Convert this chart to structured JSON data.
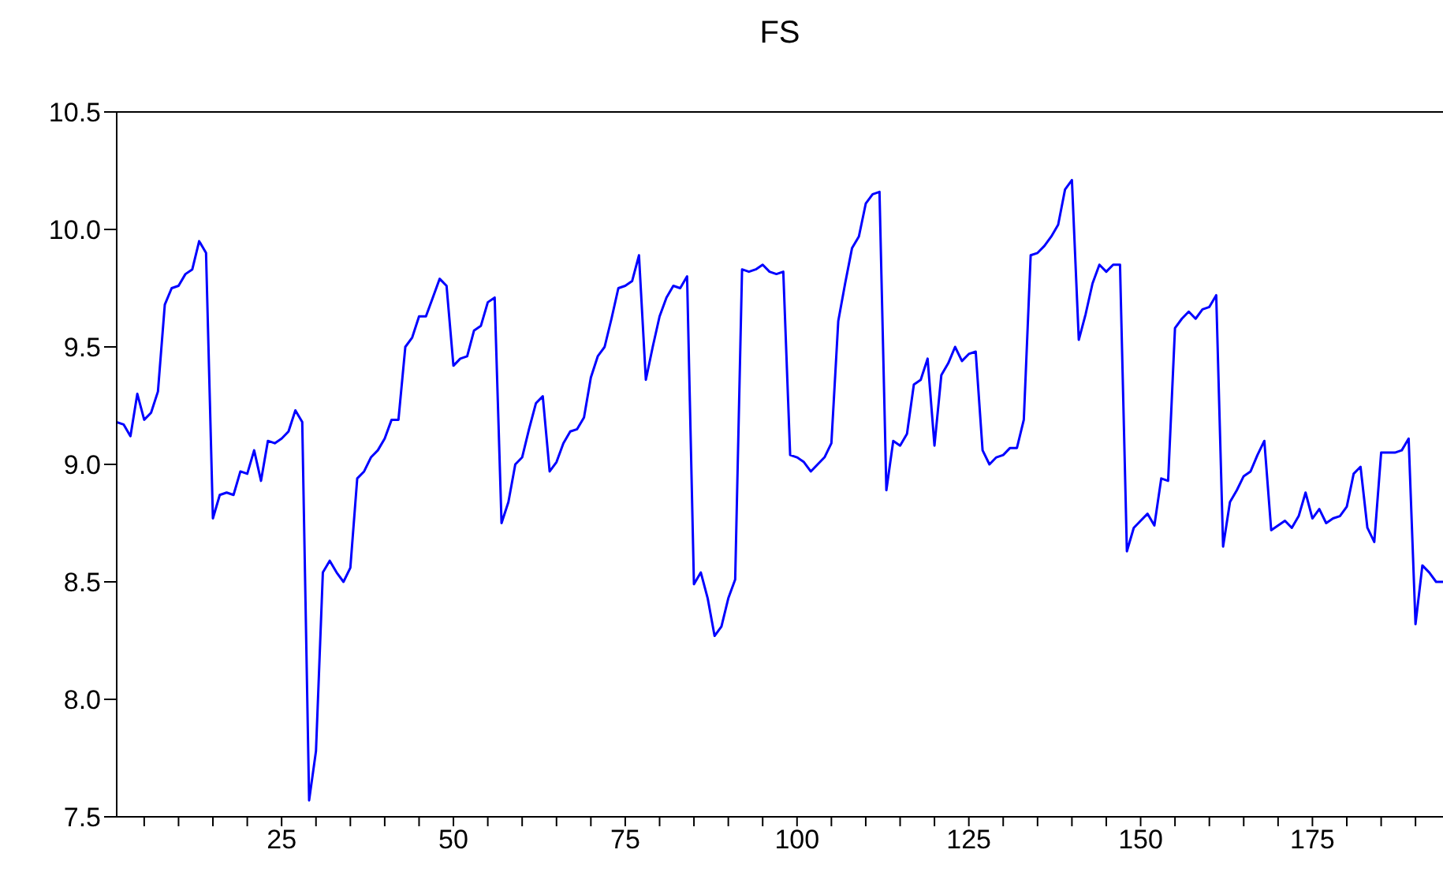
{
  "chart_data": {
    "type": "line",
    "title": "FS",
    "x": [
      1,
      2,
      3,
      4,
      5,
      6,
      7,
      8,
      9,
      10,
      11,
      12,
      13,
      14,
      15,
      16,
      17,
      18,
      19,
      20,
      21,
      22,
      23,
      24,
      25,
      26,
      27,
      28,
      29,
      30,
      31,
      32,
      33,
      34,
      35,
      36,
      37,
      38,
      39,
      40,
      41,
      42,
      43,
      44,
      45,
      46,
      47,
      48,
      49,
      50,
      51,
      52,
      53,
      54,
      55,
      56,
      57,
      58,
      59,
      60,
      61,
      62,
      63,
      64,
      65,
      66,
      67,
      68,
      69,
      70,
      71,
      72,
      73,
      74,
      75,
      76,
      77,
      78,
      79,
      80,
      81,
      82,
      83,
      84,
      85,
      86,
      87,
      88,
      89,
      90,
      91,
      92,
      93,
      94,
      95,
      96,
      97,
      98,
      99,
      100,
      101,
      102,
      103,
      104,
      105,
      106,
      107,
      108,
      109,
      110,
      111,
      112,
      113,
      114,
      115,
      116,
      117,
      118,
      119,
      120,
      121,
      122,
      123,
      124,
      125,
      126,
      127,
      128,
      129,
      130,
      131,
      132,
      133,
      134,
      135,
      136,
      137,
      138,
      139,
      140,
      141,
      142,
      143,
      144,
      145,
      146,
      147,
      148,
      149,
      150,
      151,
      152,
      153,
      154,
      155,
      156,
      157,
      158,
      159,
      160,
      161,
      162,
      163,
      164,
      165,
      166,
      167,
      168,
      169,
      170,
      171,
      172,
      173,
      174,
      175,
      176,
      177,
      178,
      179,
      180,
      181,
      182,
      183,
      184,
      185,
      186,
      187,
      188,
      189,
      190,
      191,
      192,
      193,
      194
    ],
    "series": [
      {
        "color": "#0000ff",
        "values": [
          9.18,
          9.17,
          9.12,
          9.3,
          9.19,
          9.22,
          9.31,
          9.68,
          9.75,
          9.76,
          9.81,
          9.83,
          9.95,
          9.9,
          8.77,
          8.87,
          8.88,
          8.87,
          8.97,
          8.96,
          9.06,
          8.93,
          9.1,
          9.09,
          9.11,
          9.14,
          9.23,
          9.18,
          7.57,
          7.78,
          8.54,
          8.59,
          8.54,
          8.5,
          8.56,
          8.94,
          8.97,
          9.03,
          9.06,
          9.11,
          9.19,
          9.19,
          9.5,
          9.54,
          9.63,
          9.63,
          9.71,
          9.79,
          9.76,
          9.42,
          9.45,
          9.46,
          9.57,
          9.59,
          9.69,
          9.71,
          8.75,
          8.84,
          9.0,
          9.03,
          9.15,
          9.26,
          9.29,
          8.97,
          9.01,
          9.09,
          9.14,
          9.15,
          9.2,
          9.37,
          9.46,
          9.5,
          9.62,
          9.75,
          9.76,
          9.78,
          9.89,
          9.36,
          9.5,
          9.63,
          9.71,
          9.76,
          9.75,
          9.8,
          8.49,
          8.54,
          8.43,
          8.27,
          8.31,
          8.43,
          8.51,
          9.83,
          9.82,
          9.83,
          9.85,
          9.82,
          9.81,
          9.82,
          9.04,
          9.03,
          9.01,
          8.97,
          9.0,
          9.03,
          9.09,
          9.61,
          9.77,
          9.92,
          9.97,
          10.11,
          10.15,
          10.16,
          8.89,
          9.1,
          9.08,
          9.13,
          9.34,
          9.36,
          9.45,
          9.08,
          9.38,
          9.43,
          9.5,
          9.44,
          9.47,
          9.48,
          9.06,
          9.0,
          9.03,
          9.04,
          9.07,
          9.07,
          9.19,
          9.89,
          9.9,
          9.93,
          9.97,
          10.02,
          10.17,
          10.21,
          9.53,
          9.64,
          9.77,
          9.85,
          9.82,
          9.85,
          9.85,
          8.63,
          8.73,
          8.76,
          8.79,
          8.74,
          8.94,
          8.93,
          9.58,
          9.62,
          9.65,
          9.62,
          9.66,
          9.67,
          9.72,
          8.65,
          8.84,
          8.89,
          8.95,
          8.97,
          9.04,
          9.1,
          8.72,
          8.74,
          8.76,
          8.73,
          8.78,
          8.88,
          8.77,
          8.81,
          8.75,
          8.77,
          8.78,
          8.82,
          8.96,
          8.99,
          8.73,
          8.67,
          9.05,
          9.05,
          9.05,
          9.06,
          9.11,
          8.32,
          8.57,
          8.54,
          8.5,
          8.5
        ]
      }
    ],
    "xlim": [
      1,
      194
    ],
    "xticks": [
      {
        "value": 5,
        "label": null
      },
      {
        "value": 10,
        "label": null
      },
      {
        "value": 15,
        "label": null
      },
      {
        "value": 20,
        "label": null
      },
      25,
      {
        "value": 30,
        "label": null
      },
      {
        "value": 35,
        "label": null
      },
      {
        "value": 40,
        "label": null
      },
      {
        "value": 45,
        "label": null
      },
      50,
      {
        "value": 55,
        "label": null
      },
      {
        "value": 60,
        "label": null
      },
      {
        "value": 65,
        "label": null
      },
      {
        "value": 70,
        "label": null
      },
      75,
      {
        "value": 80,
        "label": null
      },
      {
        "value": 85,
        "label": null
      },
      {
        "value": 90,
        "label": null
      },
      {
        "value": 95,
        "label": null
      },
      100,
      {
        "value": 105,
        "label": null
      },
      {
        "value": 110,
        "label": null
      },
      {
        "value": 115,
        "label": null
      },
      {
        "value": 120,
        "label": null
      },
      125,
      {
        "value": 130,
        "label": null
      },
      {
        "value": 135,
        "label": null
      },
      {
        "value": 140,
        "label": null
      },
      {
        "value": 145,
        "label": null
      },
      150,
      {
        "value": 155,
        "label": null
      },
      {
        "value": 160,
        "label": null
      },
      {
        "value": 165,
        "label": null
      },
      {
        "value": 170,
        "label": null
      },
      175,
      {
        "value": 180,
        "label": null
      },
      {
        "value": 185,
        "label": null
      },
      {
        "value": 190,
        "label": null
      }
    ],
    "ylim": [
      7.5,
      10.5
    ],
    "yticks": [
      7.5,
      {
        "value": 8,
        "label": "8.0"
      },
      8.5,
      {
        "value": 9,
        "label": "9.0"
      },
      9.5,
      {
        "value": 10,
        "label": "10.0"
      },
      10.5
    ],
    "grid": false,
    "legend": false,
    "marker": "none",
    "line_style": "solid"
  }
}
